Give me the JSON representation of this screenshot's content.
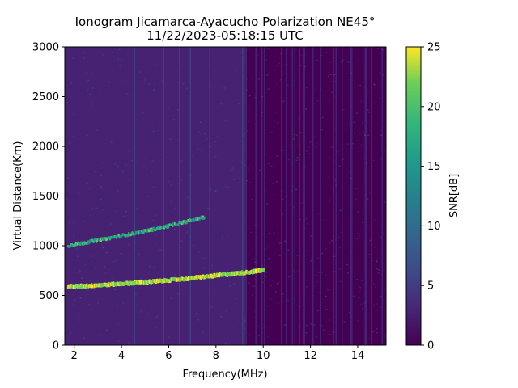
{
  "chart_data": {
    "type": "heatmap",
    "title_line1": "Ionogram Jicamarca-Ayacucho Polarization NE45°",
    "title_line2": "11/22/2023-05:18:15 UTC",
    "xlabel": "Frequency(MHz)",
    "ylabel": "Virtual Distance(Km)",
    "xlim": [
      1.6,
      15.2
    ],
    "ylim": [
      0,
      3000
    ],
    "xticks": [
      2,
      4,
      6,
      8,
      10,
      12,
      14
    ],
    "yticks": [
      0,
      500,
      1000,
      1500,
      2000,
      2500,
      3000
    ],
    "colorbar": {
      "label": "SNR[dB]",
      "range": [
        0,
        25
      ],
      "ticks": [
        0,
        5,
        10,
        15,
        20,
        25
      ],
      "colormap": "viridis"
    },
    "grid": false,
    "traces": [
      {
        "x": [
          1.7,
          2.5,
          3.5,
          4.5,
          5.5,
          6.5,
          7.5,
          8.5,
          9.5,
          10.0
        ],
        "y": [
          590,
          598,
          612,
          628,
          645,
          665,
          690,
          715,
          740,
          760
        ],
        "snr": 25
      },
      {
        "x": [
          1.7,
          2.5,
          3.5,
          4.5,
          5.5,
          6.5,
          7.5
        ],
        "y": [
          995,
          1030,
          1075,
          1120,
          1170,
          1225,
          1285
        ],
        "snr": 22
      }
    ]
  }
}
